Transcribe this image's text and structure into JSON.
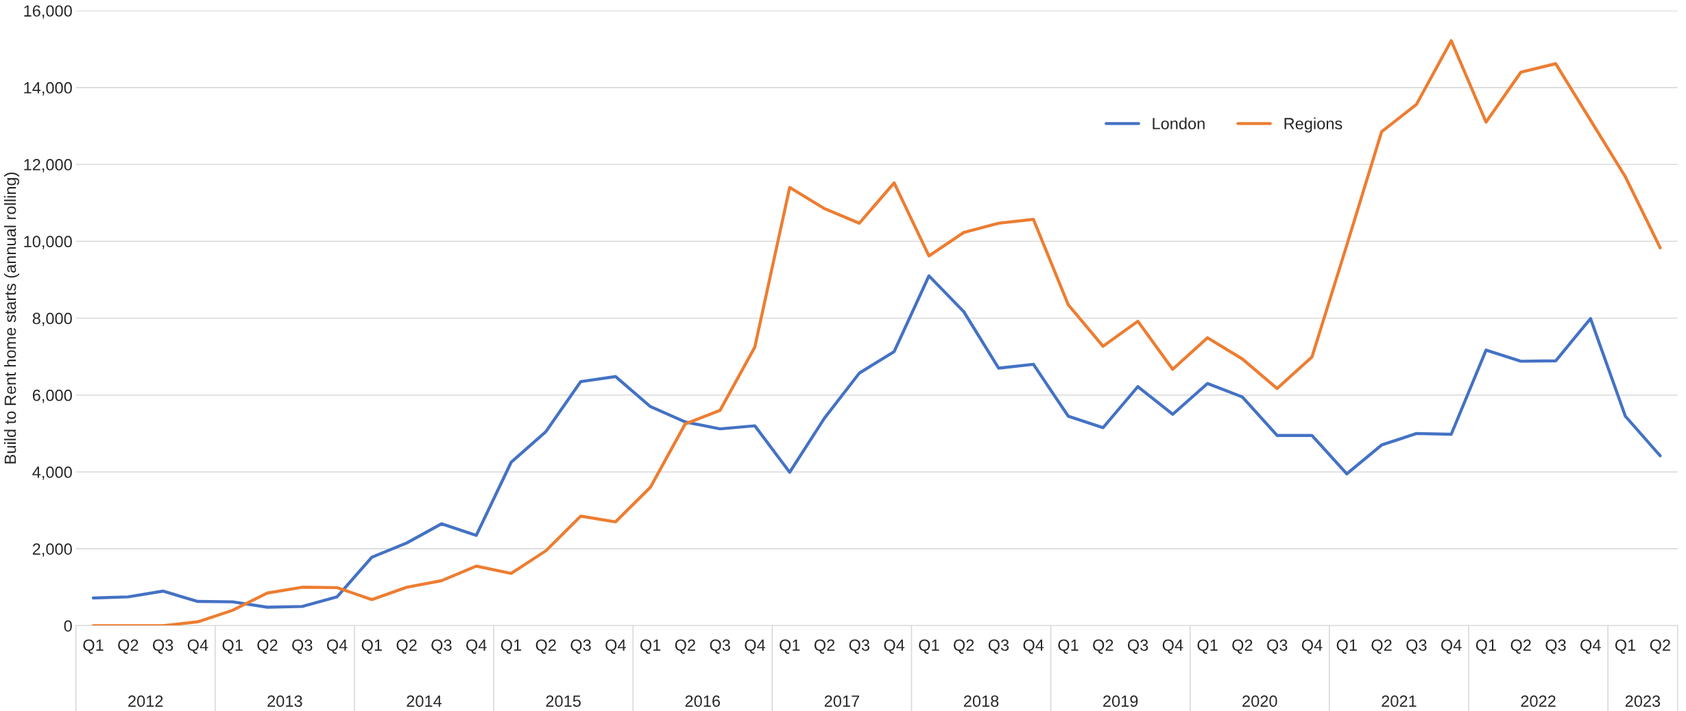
{
  "chart_data": {
    "type": "line",
    "ylabel": "Build to Rent home starts (annual rolling)",
    "categories": [
      "Q1",
      "Q2",
      "Q3",
      "Q4",
      "Q1",
      "Q2",
      "Q3",
      "Q4",
      "Q1",
      "Q2",
      "Q3",
      "Q4",
      "Q1",
      "Q2",
      "Q3",
      "Q4",
      "Q1",
      "Q2",
      "Q3",
      "Q4",
      "Q1",
      "Q2",
      "Q3",
      "Q4",
      "Q1",
      "Q2",
      "Q3",
      "Q4",
      "Q1",
      "Q2",
      "Q3",
      "Q4",
      "Q1",
      "Q2",
      "Q3",
      "Q4",
      "Q1",
      "Q2",
      "Q3",
      "Q4",
      "Q1",
      "Q2",
      "Q3",
      "Q4",
      "Q1",
      "Q2"
    ],
    "annotations": [
      "2012",
      "2013",
      "2014",
      "2015",
      "2016",
      "2017",
      "2018",
      "2019",
      "2020",
      "2021",
      "2022",
      "2023"
    ],
    "series": [
      {
        "name": "London",
        "color": "#4472c4",
        "values": [
          720,
          750,
          900,
          630,
          620,
          480,
          500,
          750,
          1780,
          2150,
          2650,
          2350,
          4250,
          5050,
          6350,
          6480,
          5700,
          5300,
          5120,
          5200,
          3990,
          5400,
          6570,
          7130,
          9100,
          8170,
          6700,
          6800,
          5450,
          5150,
          6220,
          5500,
          6300,
          5950,
          4950,
          4950,
          3950,
          4700,
          5000,
          4980,
          7170,
          6880,
          6890,
          7990,
          5450,
          4420
        ]
      },
      {
        "name": "Regions",
        "color": "#ed7d31",
        "values": [
          0,
          0,
          0,
          100,
          400,
          850,
          1000,
          990,
          680,
          1000,
          1170,
          1550,
          1360,
          1950,
          2850,
          2700,
          3600,
          5250,
          5600,
          7250,
          11400,
          10850,
          10470,
          11520,
          9620,
          10230,
          10470,
          10570,
          8350,
          7270,
          7920,
          6670,
          7490,
          6940,
          6170,
          6990,
          9900,
          12850,
          13560,
          15220,
          13100,
          14400,
          14620,
          13150,
          11680,
          9830
        ]
      }
    ],
    "ylim": [
      0,
      16000
    ],
    "yticks": [
      0,
      {
        "value": 2000,
        "label": "2,000"
      },
      {
        "value": 4000,
        "label": "4,000"
      },
      {
        "value": 6000,
        "label": "6,000"
      },
      {
        "value": 8000,
        "label": "8,000"
      },
      {
        "value": 10000,
        "label": "10,000"
      },
      {
        "value": 12000,
        "label": "12,000"
      },
      {
        "value": 14000,
        "label": "14,000"
      },
      {
        "value": 16000,
        "label": "16,000"
      }
    ],
    "grid": "y",
    "legend": "top right",
    "marker": "none",
    "line_style": "solid"
  }
}
